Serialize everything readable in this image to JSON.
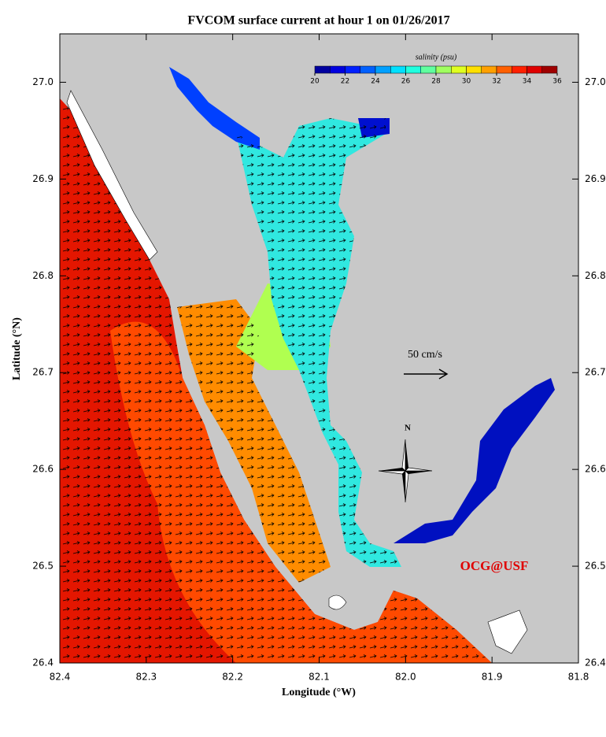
{
  "title": "FVCOM surface current at hour 1 on 01/26/2017",
  "map": {
    "xlabel": "Longitude (°W)",
    "ylabel": "Latitude (°N)",
    "xlim": [
      82.4,
      81.8
    ],
    "ylim": [
      26.4,
      27.05
    ],
    "xticks": [
      82.4,
      82.3,
      82.2,
      82.1,
      {
        "value": 82.0,
        "label": "82.0"
      },
      81.9,
      81.8
    ],
    "yticks": [
      26.4,
      26.5,
      26.6,
      26.7,
      26.8,
      26.9,
      {
        "value": 27.0,
        "label": "27.0"
      }
    ],
    "colorbar": {
      "label": "salinity (psu)",
      "range": [
        20,
        36
      ],
      "ticks": [
        20,
        22,
        24,
        26,
        28,
        30,
        32,
        34,
        36
      ],
      "colors": [
        "#00009f",
        "#0000df",
        "#0020ff",
        "#0060ff",
        "#00a0ff",
        "#00e0ff",
        "#20ffdf",
        "#60ff9f",
        "#a0ff60",
        "#dfff20",
        "#ffe000",
        "#ffa000",
        "#ff6000",
        "#ff2000",
        "#df0000",
        "#9f0000"
      ]
    },
    "scale_label": "50 cm/s",
    "compass": "N",
    "credit": "OCG@USF"
  }
}
